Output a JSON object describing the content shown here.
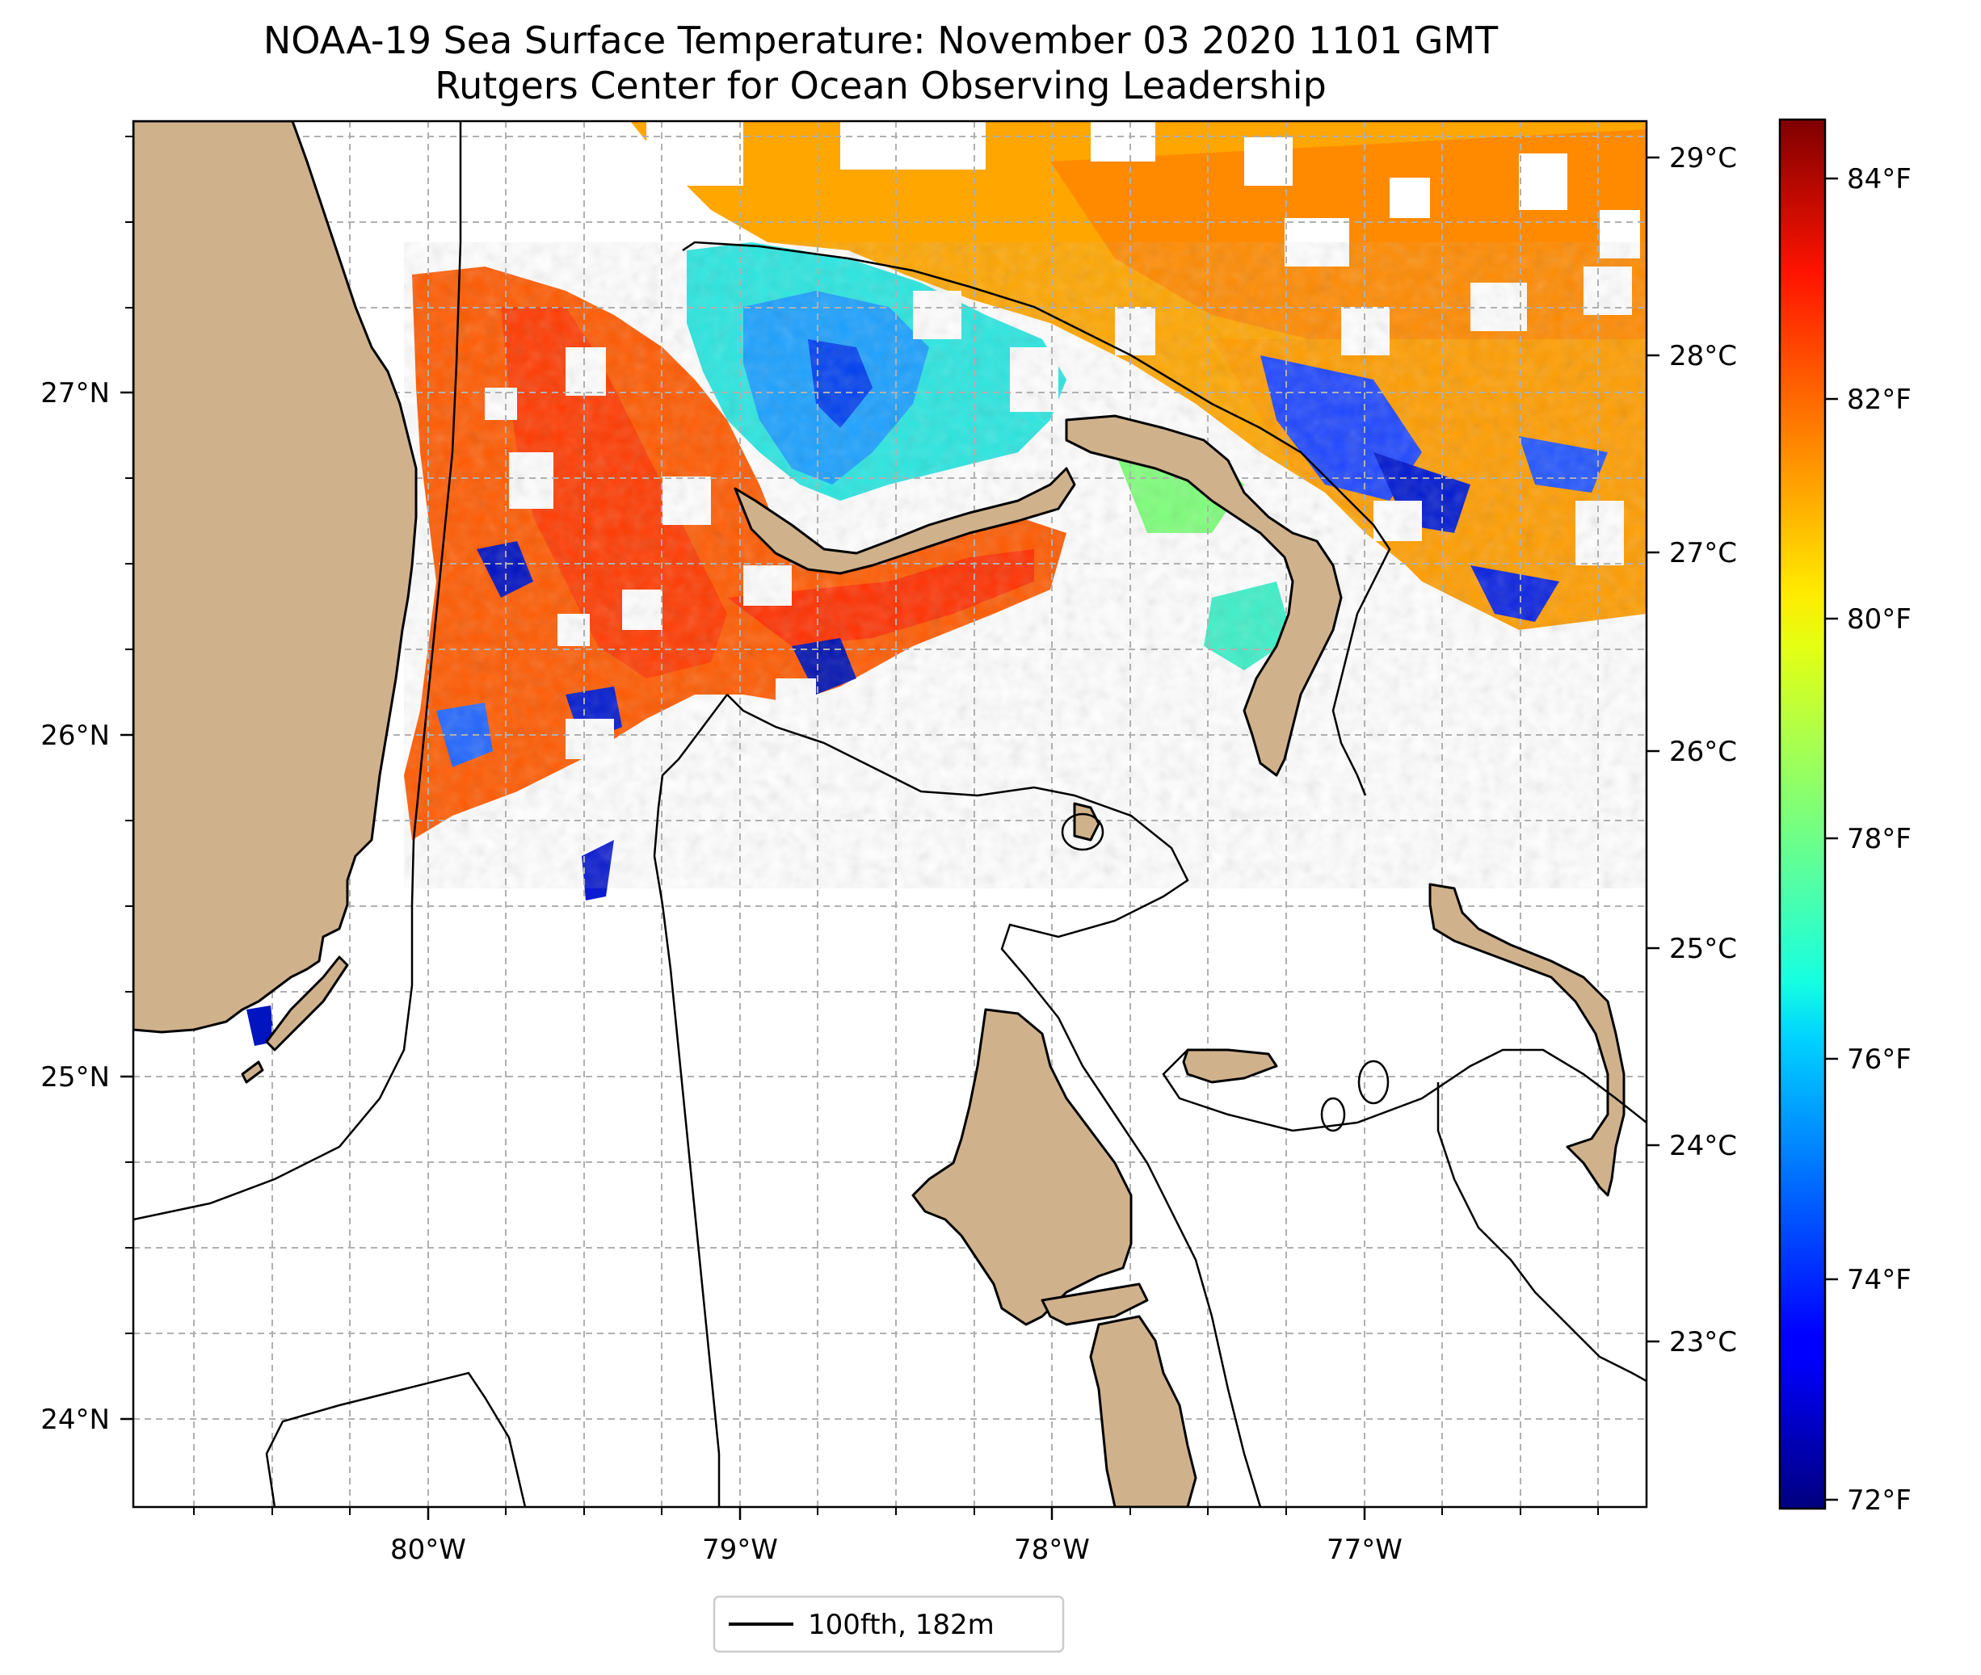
{
  "title": {
    "line1": "NOAA-19 Sea Surface Temperature: November 03 2020 1101 GMT",
    "line2": "Rutgers Center for Ocean Observing Leadership"
  },
  "map": {
    "lon_range": [
      -80.96,
      -76.09
    ],
    "lat_range": [
      23.75,
      27.8
    ],
    "gridlines": true,
    "land_color": "#cfb28c",
    "x_ticks": [
      "80°W",
      "79°W",
      "78°W",
      "77°W"
    ],
    "y_ticks": [
      "24°N",
      "25°N",
      "26°N",
      "27°N"
    ],
    "right_ticks": [
      "23°C",
      "24°C",
      "25°C",
      "26°C",
      "27°C",
      "28°C",
      "29°C"
    ]
  },
  "colorbar": {
    "colormap": "jet",
    "range_f": [
      71.9,
      84.5
    ],
    "ticks": [
      "72°F",
      "74°F",
      "76°F",
      "78°F",
      "80°F",
      "82°F",
      "84°F"
    ]
  },
  "legend": {
    "label": "100fth, 182m",
    "placement": "bottom-center"
  }
}
